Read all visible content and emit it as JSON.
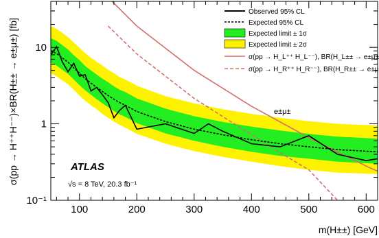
{
  "chart_data": {
    "type": "line",
    "experiment": "ATLAS",
    "energy_note": "√s = 8 TeV, 20.3 fb⁻¹",
    "channel": "e±μ±",
    "xlabel": "m(H±±) [GeV]",
    "ylabel": "σ(pp → H⁺⁺H⁻⁻)×BR(H±± → e±μ±) [fb]",
    "xlim": [
      50,
      620
    ],
    "ylim": [
      0.1,
      40
    ],
    "yscale": "log",
    "x_ticks": [
      "100",
      "200",
      "300",
      "400",
      "500",
      "600"
    ],
    "y_ticks": [
      "10⁻¹",
      "1",
      "10"
    ],
    "legend_position": "top-right",
    "band_x": [
      50,
      60,
      70,
      80,
      90,
      100,
      110,
      120,
      130,
      140,
      150,
      160,
      170,
      180,
      200,
      250,
      300,
      350,
      400,
      450,
      500,
      550,
      620
    ],
    "expected": [
      9.0,
      8.3,
      7.3,
      6.4,
      5.4,
      4.6,
      3.9,
      3.4,
      3.0,
      2.65,
      2.35,
      2.1,
      1.9,
      1.75,
      1.45,
      1.07,
      0.85,
      0.72,
      0.62,
      0.55,
      0.5,
      0.46,
      0.43
    ],
    "band_1sigma_lower": [
      6.3,
      5.8,
      5.1,
      4.5,
      3.8,
      3.2,
      2.75,
      2.4,
      2.1,
      1.85,
      1.65,
      1.47,
      1.33,
      1.23,
      1.02,
      0.75,
      0.6,
      0.5,
      0.43,
      0.38,
      0.35,
      0.32,
      0.3
    ],
    "band_1sigma_upper": [
      13.2,
      12.2,
      10.7,
      9.4,
      7.9,
      6.8,
      5.7,
      5.0,
      4.4,
      3.9,
      3.5,
      3.1,
      2.8,
      2.6,
      2.15,
      1.58,
      1.26,
      1.06,
      0.92,
      0.82,
      0.74,
      0.68,
      0.64
    ],
    "band_2sigma_lower": [
      4.6,
      4.2,
      3.7,
      3.3,
      2.8,
      2.35,
      2.0,
      1.75,
      1.55,
      1.35,
      1.2,
      1.07,
      0.97,
      0.89,
      0.74,
      0.55,
      0.44,
      0.37,
      0.32,
      0.28,
      0.25,
      0.23,
      0.22
    ],
    "band_2sigma_upper": [
      19.0,
      17.5,
      15.5,
      13.6,
      11.6,
      9.9,
      8.4,
      7.3,
      6.5,
      5.8,
      5.1,
      4.6,
      4.1,
      3.8,
      3.15,
      2.3,
      1.85,
      1.55,
      1.35,
      1.2,
      1.08,
      1.0,
      0.95
    ],
    "observed": {
      "x": [
        50,
        60,
        70,
        80,
        90,
        100,
        110,
        120,
        130,
        140,
        150,
        160,
        170,
        180,
        200,
        250,
        300,
        325,
        350,
        400,
        450,
        500,
        550,
        600,
        620
      ],
      "y": [
        8.0,
        10.2,
        6.5,
        4.8,
        6.2,
        4.2,
        4.4,
        2.7,
        3.0,
        2.4,
        1.9,
        1.2,
        1.5,
        1.75,
        0.85,
        1.0,
        0.75,
        1.0,
        0.8,
        0.55,
        0.5,
        0.7,
        0.4,
        0.33,
        0.35
      ]
    },
    "theory": [
      {
        "name": "σ(pp → H_L⁺⁺ H_L⁻⁻), BR(H_L±± → e±μ±)=1",
        "style": "solid",
        "color": "#d0706a",
        "x": [
          150,
          200,
          300,
          400,
          500,
          550,
          600,
          620
        ],
        "y": [
          45,
          19,
          5.0,
          1.7,
          0.66,
          0.43,
          0.28,
          0.24
        ]
      },
      {
        "name": "σ(pp → H_R⁺⁺ H_R⁻⁻), BR(H_R±± → e±μ±)=1",
        "style": "dashed",
        "color": "#d0706a",
        "x": [
          150,
          200,
          300,
          400,
          450,
          500,
          550
        ],
        "y": [
          19,
          8.2,
          2.15,
          0.72,
          0.42,
          0.25,
          0.1
        ]
      }
    ],
    "series": [
      {
        "name": "Observed 95% CL",
        "color": "#000000"
      },
      {
        "name": "Expected 95% CL",
        "color": "#000000"
      },
      {
        "name": "Expected limit ± 1σ",
        "color": "#22ee22"
      },
      {
        "name": "Expected limit ± 2σ",
        "color": "#fff200"
      }
    ]
  }
}
